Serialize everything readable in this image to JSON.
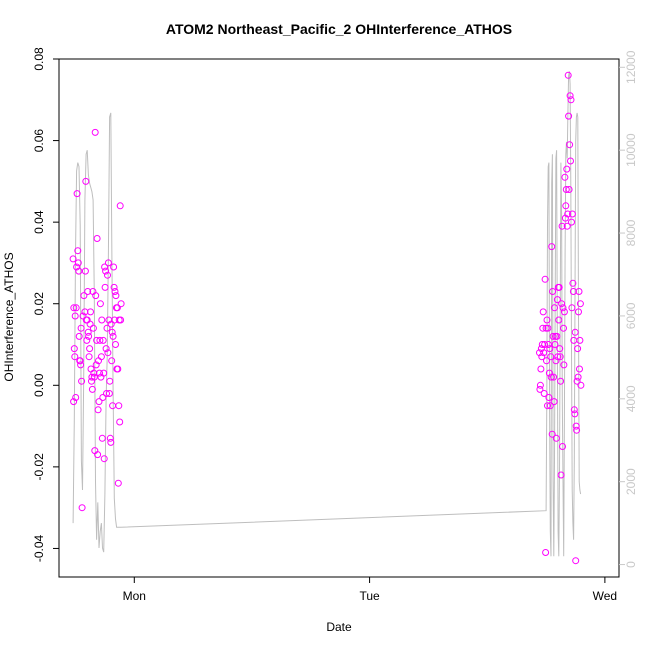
{
  "chart_data": {
    "type": "scatter",
    "title": "ATOM2 Northeast_Pacific_2 OHInterference_ATHOS",
    "xlabel": "Date",
    "ylabel": "OHInterference_ATHOS",
    "x_ticks": [
      "Mon",
      "Tue",
      "Wed"
    ],
    "x_tick_positions": [
      1.0,
      2.0,
      3.0
    ],
    "xlim": [
      0.68,
      3.06
    ],
    "ylim": [
      -0.047,
      0.08
    ],
    "y_ticks": [
      "-0.04",
      "-0.02",
      "0.00",
      "0.02",
      "0.04",
      "0.06",
      "0.08"
    ],
    "y_tick_values": [
      -0.04,
      -0.02,
      0.0,
      0.02,
      0.04,
      0.06,
      0.08
    ],
    "y2lim": [
      -300,
      12200
    ],
    "y2_ticks": [
      "0",
      "2000",
      "4000",
      "6000",
      "8000",
      "10000",
      "12000"
    ],
    "y2_tick_values": [
      0,
      2000,
      4000,
      6000,
      8000,
      10000,
      12000
    ],
    "colors": {
      "points": "#ff00ff",
      "line": "#bebebe",
      "right_axis": "#c8c8c8"
    },
    "series": [
      {
        "type": "scatter",
        "axis": "left",
        "points": [
          [
            0.74,
            0.031
          ],
          [
            0.742,
            -0.004
          ],
          [
            0.743,
            0.019
          ],
          [
            0.745,
            0.009
          ],
          [
            0.747,
            0.007
          ],
          [
            0.749,
            0.017
          ],
          [
            0.751,
            -0.003
          ],
          [
            0.753,
            0.019
          ],
          [
            0.755,
            0.029
          ],
          [
            0.757,
            0.047
          ],
          [
            0.76,
            0.033
          ],
          [
            0.762,
            0.03
          ],
          [
            0.764,
            0.028
          ],
          [
            0.766,
            0.012
          ],
          [
            0.768,
            0.006
          ],
          [
            0.77,
            0.006
          ],
          [
            0.772,
            0.005
          ],
          [
            0.774,
            0.014
          ],
          [
            0.776,
            0.001
          ],
          [
            0.778,
            -0.03
          ],
          [
            0.782,
            0.017
          ],
          [
            0.786,
            0.022
          ],
          [
            0.79,
            0.018
          ],
          [
            0.792,
            0.028
          ],
          [
            0.794,
            0.05
          ],
          [
            0.796,
            0.016
          ],
          [
            0.798,
            0.011
          ],
          [
            0.8,
            0.016
          ],
          [
            0.802,
            0.023
          ],
          [
            0.804,
            0.013
          ],
          [
            0.806,
            0.012
          ],
          [
            0.808,
            0.007
          ],
          [
            0.81,
            0.009
          ],
          [
            0.812,
            0.015
          ],
          [
            0.814,
            0.018
          ],
          [
            0.816,
            0.004
          ],
          [
            0.818,
            0.001
          ],
          [
            0.82,
            0.002
          ],
          [
            0.822,
            -0.001
          ],
          [
            0.824,
            0.023
          ],
          [
            0.826,
            0.014
          ],
          [
            0.828,
            0.003
          ],
          [
            0.83,
            0.002
          ],
          [
            0.832,
            -0.016
          ],
          [
            0.834,
            0.062
          ],
          [
            0.836,
            0.022
          ],
          [
            0.838,
            0.005
          ],
          [
            0.84,
            0.011
          ],
          [
            0.842,
            0.036
          ],
          [
            0.844,
            -0.017
          ],
          [
            0.846,
            -0.006
          ],
          [
            0.848,
            0.006
          ],
          [
            0.85,
            -0.004
          ],
          [
            0.852,
            0.003
          ],
          [
            0.854,
            0.011
          ],
          [
            0.856,
            0.02
          ],
          [
            0.858,
            0.002
          ],
          [
            0.86,
            0.007
          ],
          [
            0.862,
            0.016
          ],
          [
            0.864,
            -0.013
          ],
          [
            0.866,
            -0.003
          ],
          [
            0.868,
            0.011
          ],
          [
            0.87,
            0.003
          ],
          [
            0.872,
            -0.018
          ],
          [
            0.874,
            0.029
          ],
          [
            0.876,
            0.024
          ],
          [
            0.878,
            0.028
          ],
          [
            0.88,
            0.009
          ],
          [
            0.882,
            -0.002
          ],
          [
            0.884,
            0.014
          ],
          [
            0.886,
            0.027
          ],
          [
            0.888,
            0.008
          ],
          [
            0.89,
            0.03
          ],
          [
            0.892,
            0.016
          ],
          [
            0.894,
            -0.002
          ],
          [
            0.896,
            0.001
          ],
          [
            0.898,
            -0.013
          ],
          [
            0.9,
            -0.014
          ],
          [
            0.902,
            0.015
          ],
          [
            0.904,
            0.006
          ],
          [
            0.906,
            0.013
          ],
          [
            0.908,
            -0.005
          ],
          [
            0.91,
            0.012
          ],
          [
            0.912,
            0.029
          ],
          [
            0.914,
            0.024
          ],
          [
            0.916,
            0.016
          ],
          [
            0.918,
            0.023
          ],
          [
            0.92,
            0.01
          ],
          [
            0.922,
            0.022
          ],
          [
            0.924,
            0.019
          ],
          [
            0.926,
            0.004
          ],
          [
            0.928,
            0.019
          ],
          [
            0.93,
            0.004
          ],
          [
            0.932,
            -0.024
          ],
          [
            0.934,
            -0.005
          ],
          [
            0.936,
            0.016
          ],
          [
            0.938,
            -0.009
          ],
          [
            0.94,
            0.044
          ],
          [
            0.942,
            0.016
          ],
          [
            0.944,
            0.02
          ],
          [
            2.722,
            0.008
          ],
          [
            2.724,
            -0.001
          ],
          [
            2.726,
            0.0
          ],
          [
            2.728,
            0.004
          ],
          [
            2.73,
            0.009
          ],
          [
            2.732,
            0.007
          ],
          [
            2.734,
            0.01
          ],
          [
            2.736,
            0.014
          ],
          [
            2.738,
            0.018
          ],
          [
            2.74,
            0.008
          ],
          [
            2.742,
            -0.002
          ],
          [
            2.744,
            0.01
          ],
          [
            2.746,
            0.026
          ],
          [
            2.748,
            -0.041
          ],
          [
            2.75,
            0.014
          ],
          [
            2.752,
            0.006
          ],
          [
            2.754,
            0.016
          ],
          [
            2.756,
            -0.005
          ],
          [
            2.758,
            0.014
          ],
          [
            2.76,
            0.01
          ],
          [
            2.762,
            -0.003
          ],
          [
            2.764,
            0.003
          ],
          [
            2.766,
            0.009
          ],
          [
            2.768,
            -0.005
          ],
          [
            2.77,
            0.007
          ],
          [
            2.772,
            0.002
          ],
          [
            2.774,
            0.034
          ],
          [
            2.776,
            -0.012
          ],
          [
            2.778,
            0.023
          ],
          [
            2.78,
            0.012
          ],
          [
            2.782,
            0.002
          ],
          [
            2.784,
            -0.004
          ],
          [
            2.786,
            0.019
          ],
          [
            2.788,
            0.01
          ],
          [
            2.79,
            0.012
          ],
          [
            2.792,
            0.006
          ],
          [
            2.794,
            -0.013
          ],
          [
            2.796,
            0.012
          ],
          [
            2.798,
            0.021
          ],
          [
            2.8,
            0.007
          ],
          [
            2.802,
            0.024
          ],
          [
            2.804,
            0.016
          ],
          [
            2.806,
            0.024
          ],
          [
            2.808,
            0.009
          ],
          [
            2.81,
            0.007
          ],
          [
            2.812,
            0.001
          ],
          [
            2.814,
            -0.022
          ],
          [
            2.816,
            0.02
          ],
          [
            2.818,
            0.039
          ],
          [
            2.82,
            -0.015
          ],
          [
            2.822,
            0.019
          ],
          [
            2.824,
            0.014
          ],
          [
            2.826,
            0.005
          ],
          [
            2.828,
            0.018
          ],
          [
            2.83,
            0.051
          ],
          [
            2.832,
            0.041
          ],
          [
            2.834,
            0.044
          ],
          [
            2.836,
            0.048
          ],
          [
            2.838,
            0.053
          ],
          [
            2.84,
            0.039
          ],
          [
            2.842,
            0.042
          ],
          [
            2.844,
            0.076
          ],
          [
            2.846,
            0.066
          ],
          [
            2.848,
            0.048
          ],
          [
            2.85,
            0.059
          ],
          [
            2.852,
            0.071
          ],
          [
            2.854,
            0.055
          ],
          [
            2.856,
            0.07
          ],
          [
            2.858,
            0.04
          ],
          [
            2.86,
            0.019
          ],
          [
            2.862,
            0.042
          ],
          [
            2.864,
            0.025
          ],
          [
            2.866,
            0.023
          ],
          [
            2.868,
            0.011
          ],
          [
            2.87,
            -0.006
          ],
          [
            2.872,
            -0.007
          ],
          [
            2.874,
            0.013
          ],
          [
            2.876,
            -0.043
          ],
          [
            2.878,
            -0.01
          ],
          [
            2.88,
            -0.011
          ],
          [
            2.882,
            0.001
          ],
          [
            2.884,
            0.009
          ],
          [
            2.886,
            0.002
          ],
          [
            2.888,
            0.018
          ],
          [
            2.89,
            0.023
          ],
          [
            2.892,
            0.004
          ],
          [
            2.894,
            0.011
          ],
          [
            2.896,
            0.02
          ],
          [
            2.898,
            0.0
          ]
        ]
      },
      {
        "type": "line",
        "axis": "right",
        "points": [
          [
            0.74,
            1000
          ],
          [
            0.745,
            3500
          ],
          [
            0.75,
            7500
          ],
          [
            0.755,
            9500
          ],
          [
            0.76,
            9700
          ],
          [
            0.765,
            9600
          ],
          [
            0.77,
            8200
          ],
          [
            0.775,
            2500
          ],
          [
            0.78,
            1800
          ],
          [
            0.785,
            4500
          ],
          [
            0.79,
            8800
          ],
          [
            0.795,
            9900
          ],
          [
            0.8,
            10000
          ],
          [
            0.805,
            9400
          ],
          [
            0.81,
            9200
          ],
          [
            0.815,
            9100
          ],
          [
            0.82,
            9000
          ],
          [
            0.825,
            8800
          ],
          [
            0.83,
            6500
          ],
          [
            0.835,
            2000
          ],
          [
            0.84,
            600
          ],
          [
            0.845,
            1500
          ],
          [
            0.85,
            400
          ],
          [
            0.855,
            800
          ],
          [
            0.86,
            1000
          ],
          [
            0.865,
            400
          ],
          [
            0.87,
            300
          ],
          [
            0.875,
            1700
          ],
          [
            0.88,
            4000
          ],
          [
            0.885,
            5000
          ],
          [
            0.89,
            7500
          ],
          [
            0.895,
            10800
          ],
          [
            0.9,
            10900
          ],
          [
            0.905,
            7400
          ],
          [
            0.91,
            4200
          ],
          [
            0.915,
            1600
          ],
          [
            0.92,
            1100
          ],
          [
            0.925,
            900
          ],
          [
            0.93,
            900
          ],
          [
            0.94,
            900
          ],
          [
            0.943,
            900
          ],
          [
            2.75,
            1300
          ],
          [
            2.753,
            4000
          ],
          [
            2.756,
            8200
          ],
          [
            2.759,
            9600
          ],
          [
            2.762,
            9700
          ],
          [
            2.765,
            3700
          ],
          [
            2.768,
            800
          ],
          [
            2.771,
            200
          ],
          [
            2.774,
            9200
          ],
          [
            2.777,
            9900
          ],
          [
            2.78,
            2000
          ],
          [
            2.783,
            200
          ],
          [
            2.786,
            2500
          ],
          [
            2.789,
            6500
          ],
          [
            2.792,
            9800
          ],
          [
            2.795,
            10000
          ],
          [
            2.798,
            5000
          ],
          [
            2.801,
            800
          ],
          [
            2.804,
            200
          ],
          [
            2.807,
            2200
          ],
          [
            2.81,
            6000
          ],
          [
            2.813,
            9700
          ],
          [
            2.816,
            8500
          ],
          [
            2.819,
            4000
          ],
          [
            2.822,
            2000
          ],
          [
            2.825,
            200
          ],
          [
            2.828,
            3500
          ],
          [
            2.831,
            7500
          ],
          [
            2.834,
            9900
          ],
          [
            2.837,
            10200
          ],
          [
            2.84,
            9800
          ],
          [
            2.843,
            10900
          ],
          [
            2.846,
            11800
          ],
          [
            2.849,
            11900
          ],
          [
            2.852,
            11600
          ],
          [
            2.855,
            9200
          ],
          [
            2.858,
            5200
          ],
          [
            2.861,
            1800
          ],
          [
            2.864,
            1000
          ],
          [
            2.867,
            600
          ],
          [
            2.87,
            2500
          ],
          [
            2.873,
            6500
          ],
          [
            2.876,
            10200
          ],
          [
            2.879,
            10800
          ],
          [
            2.882,
            10900
          ],
          [
            2.885,
            10800
          ],
          [
            2.888,
            6000
          ],
          [
            2.891,
            2000
          ],
          [
            2.894,
            1800
          ],
          [
            2.897,
            1700
          ]
        ]
      }
    ]
  }
}
